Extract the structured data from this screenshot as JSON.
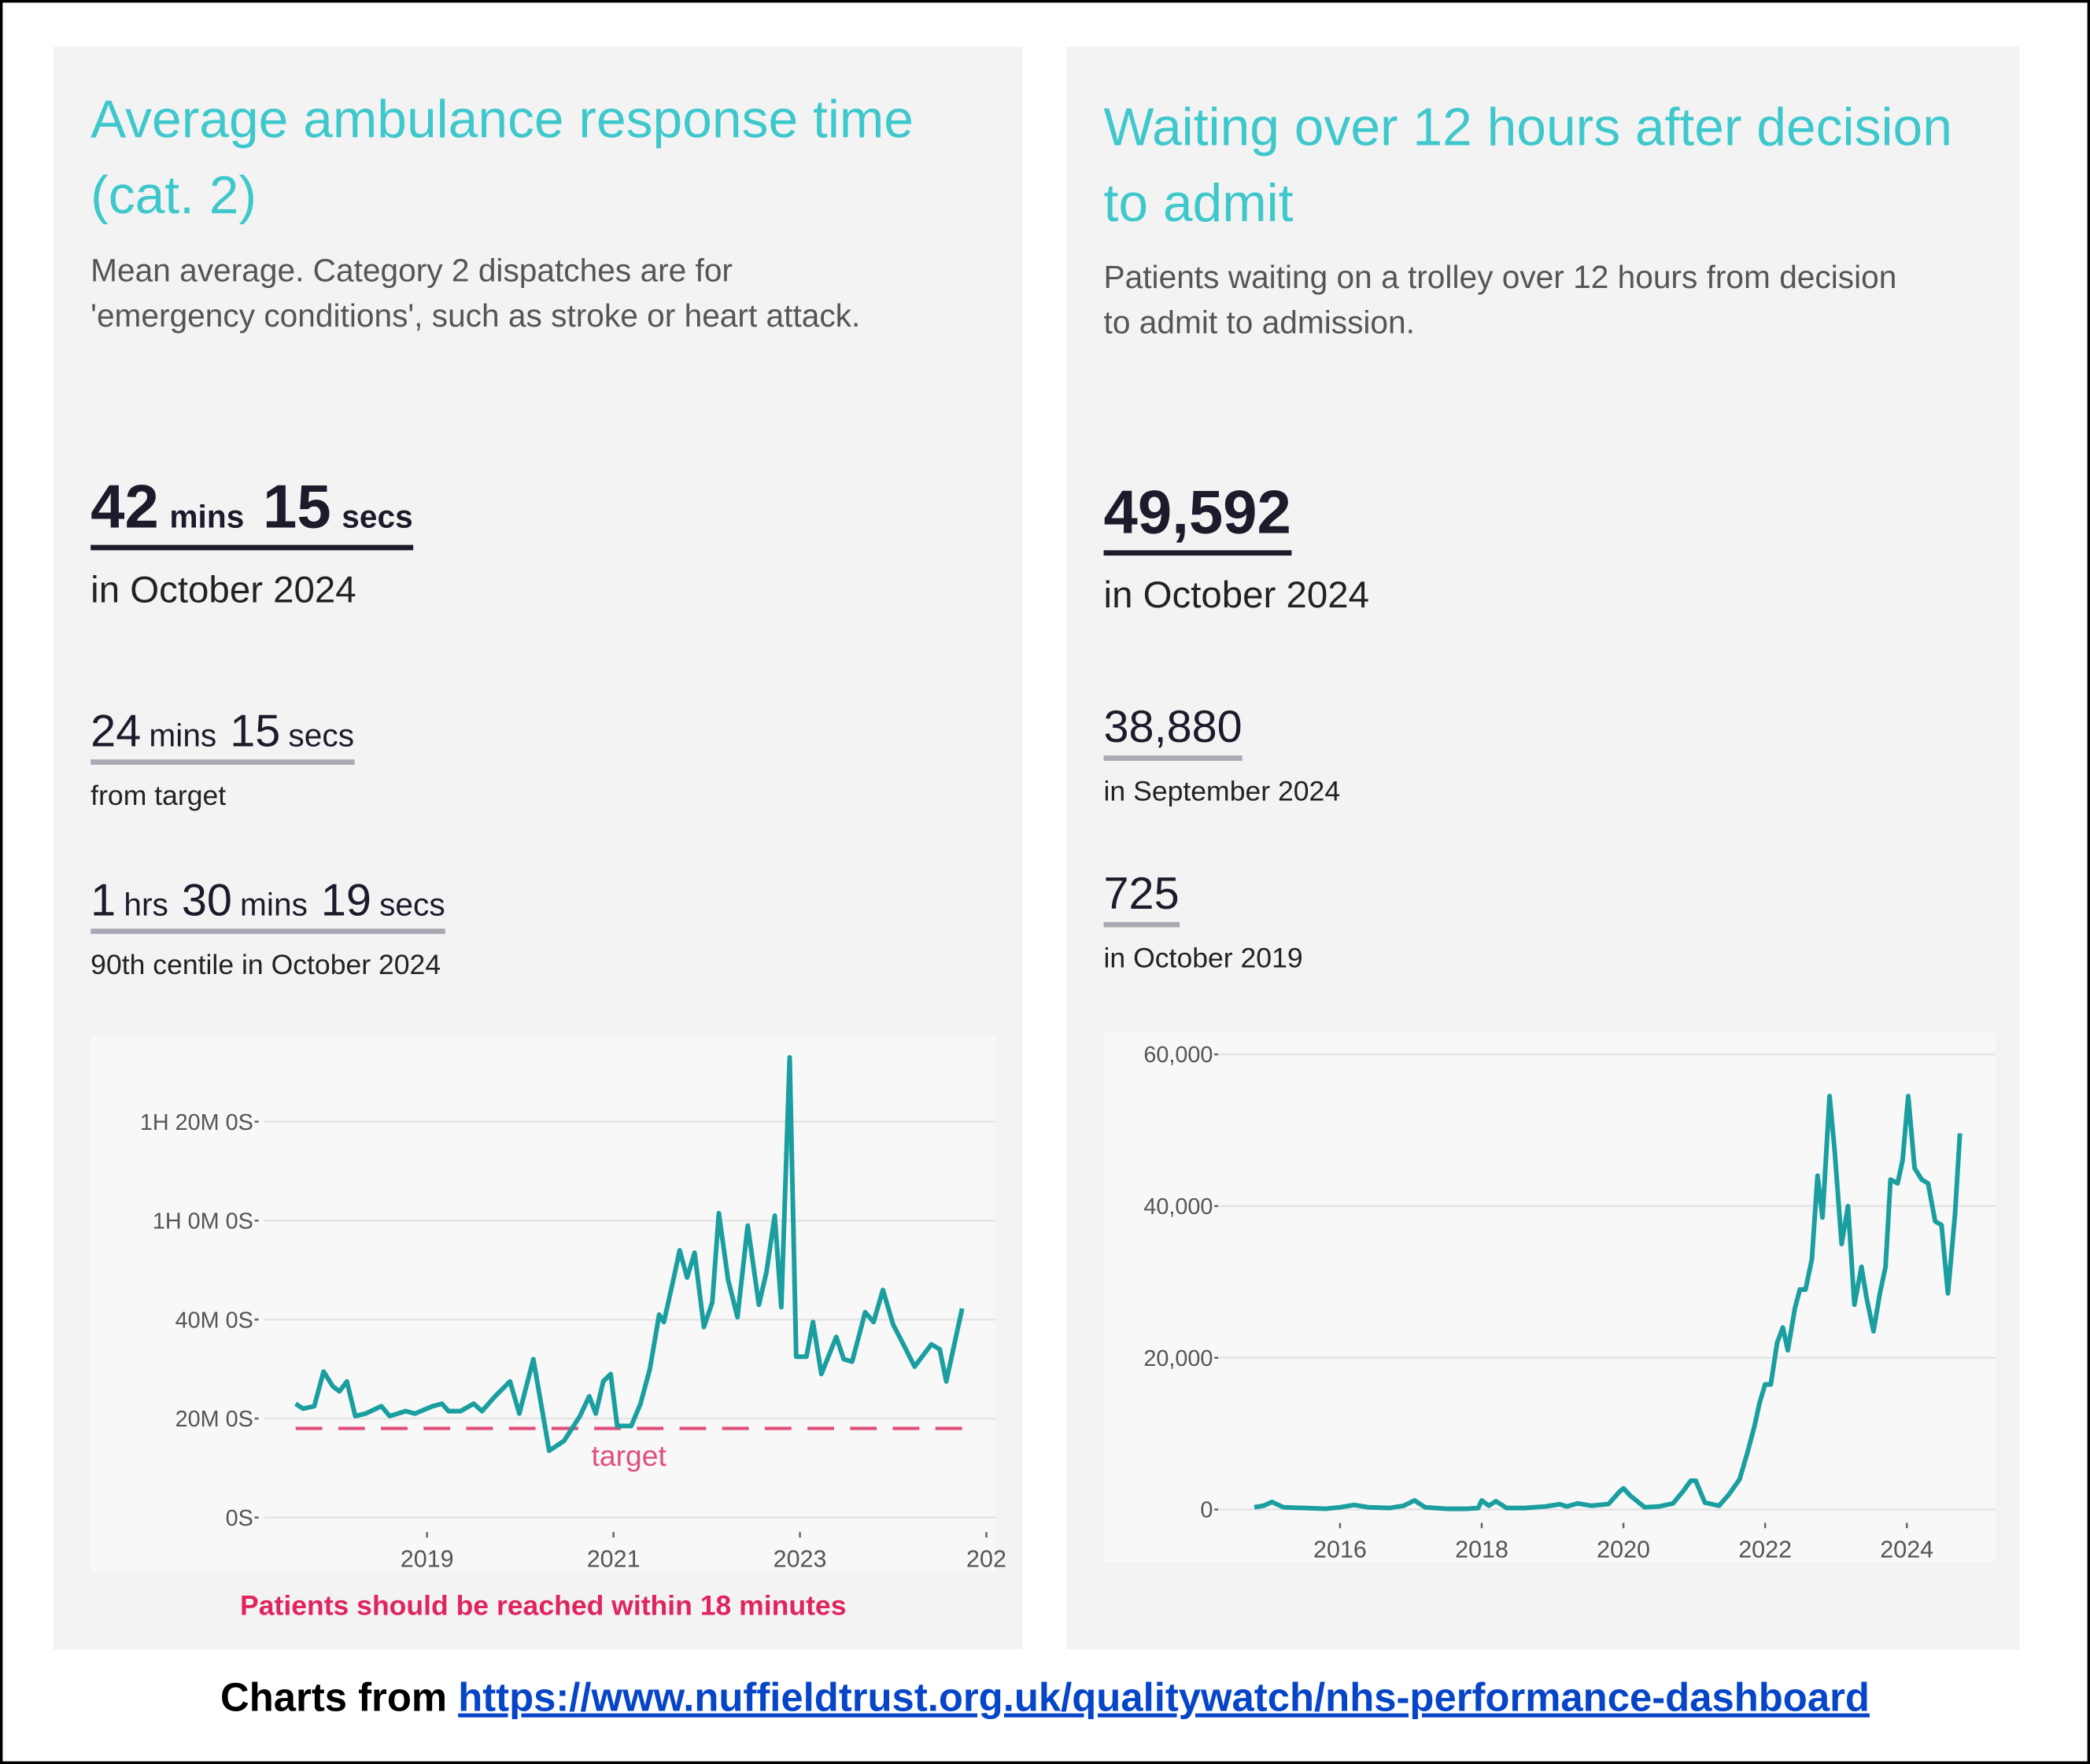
{
  "chart_data": [
    {
      "type": "line",
      "title": "Average ambulance response time (cat. 2)",
      "subtitle": "Mean average. Category 2 dispatches are for 'emergency conditions', such as stroke or heart attack.",
      "headline": {
        "parts": [
          {
            "number": 42,
            "unit": "mins"
          },
          {
            "number": 15,
            "unit": "secs"
          }
        ],
        "caption": "in October 2024"
      },
      "stats": [
        {
          "parts": [
            {
              "number": 24,
              "unit": "mins"
            },
            {
              "number": 15,
              "unit": "secs"
            }
          ],
          "caption": "from target"
        },
        {
          "parts": [
            {
              "number": 1,
              "unit": "hrs"
            },
            {
              "number": 30,
              "unit": "mins"
            },
            {
              "number": 19,
              "unit": "secs"
            }
          ],
          "caption": "90th centile in October 2024"
        }
      ],
      "x": [
        2017.59,
        2017.67,
        2017.79,
        2017.89,
        2017.99,
        2018.06,
        2018.14,
        2018.23,
        2018.34,
        2018.51,
        2018.6,
        2018.77,
        2018.87,
        2019.06,
        2019.16,
        2019.23,
        2019.36,
        2019.5,
        2019.59,
        2019.73,
        2019.89,
        2019.99,
        2020.14,
        2020.31,
        2020.47,
        2020.64,
        2020.74,
        2020.81,
        2020.89,
        2020.97,
        2021.04,
        2021.19,
        2021.29,
        2021.39,
        2021.49,
        2021.54,
        2021.63,
        2021.71,
        2021.79,
        2021.87,
        2021.97,
        2022.06,
        2022.13,
        2022.23,
        2022.33,
        2022.44,
        2022.56,
        2022.64,
        2022.73,
        2022.8,
        2022.89,
        2022.96,
        2023.07,
        2023.14,
        2023.23,
        2023.39,
        2023.47,
        2023.56,
        2023.7,
        2023.79,
        2023.89,
        2024.0,
        2024.11,
        2024.23,
        2024.41,
        2024.5,
        2024.57,
        2024.74
      ],
      "values": [
        1380,
        1320,
        1350,
        1770,
        1590,
        1530,
        1650,
        1230,
        1260,
        1350,
        1230,
        1290,
        1260,
        1350,
        1380,
        1290,
        1290,
        1380,
        1290,
        1470,
        1650,
        1260,
        1920,
        810,
        930,
        1230,
        1470,
        1260,
        1650,
        1740,
        1110,
        1110,
        1380,
        1800,
        2460,
        2370,
        2820,
        3240,
        2910,
        3210,
        2310,
        2610,
        3690,
        2880,
        2430,
        3540,
        2580,
        2970,
        3660,
        2550,
        5580,
        1950,
        1950,
        2370,
        1740,
        2190,
        1920,
        1890,
        2490,
        2370,
        2760,
        2340,
        2100,
        1830,
        2100,
        2040,
        1650,
        2535
      ],
      "color": "#1a9ea0",
      "xlim": [
        2017.25,
        2025.1
      ],
      "xticks": [
        2019,
        2021,
        2023,
        {
          "value": 2025,
          "label": "202"
        }
      ],
      "ylim": [
        0,
        5800
      ],
      "yticks": [
        {
          "value": 0,
          "label": "0S"
        },
        {
          "value": 1200,
          "label": "20M 0S"
        },
        {
          "value": 2400,
          "label": "40M 0S"
        },
        {
          "value": 3600,
          "label": "1H 0M 0S"
        },
        {
          "value": 4800,
          "label": "1H 20M 0S"
        }
      ],
      "grid": true,
      "target": {
        "value": 1080,
        "label": "target",
        "color": "#e0507a"
      },
      "annotation": "Patients should be reached within 18 minutes"
    },
    {
      "type": "line",
      "title": "Waiting over 12 hours after decision to admit",
      "subtitle": "Patients waiting on a trolley over 12 hours from decision to admit to admission.",
      "headline": {
        "parts": [
          {
            "number": "49,592"
          }
        ],
        "caption": "in October 2024"
      },
      "stats": [
        {
          "parts": [
            {
              "number": "38,880"
            }
          ],
          "caption": "in September 2024"
        },
        {
          "parts": [
            {
              "number": 725
            }
          ],
          "caption": "in October 2019"
        }
      ],
      "x": [
        2014.79,
        2014.92,
        2015.04,
        2015.2,
        2015.5,
        2015.8,
        2016.0,
        2016.2,
        2016.4,
        2016.7,
        2016.9,
        2017.05,
        2017.2,
        2017.5,
        2017.8,
        2017.95,
        2018.0,
        2018.1,
        2018.2,
        2018.35,
        2018.6,
        2018.9,
        2019.1,
        2019.2,
        2019.35,
        2019.55,
        2019.79,
        2019.94,
        2020.0,
        2020.1,
        2020.3,
        2020.5,
        2020.7,
        2020.85,
        2020.95,
        2021.02,
        2021.15,
        2021.35,
        2021.49,
        2021.64,
        2021.75,
        2021.85,
        2021.92,
        2022.0,
        2022.08,
        2022.17,
        2022.25,
        2022.32,
        2022.42,
        2022.49,
        2022.57,
        2022.66,
        2022.74,
        2022.81,
        2022.91,
        2022.98,
        2023.08,
        2023.17,
        2023.26,
        2023.36,
        2023.43,
        2023.53,
        2023.62,
        2023.7,
        2023.77,
        2023.87,
        2023.94,
        2024.02,
        2024.11,
        2024.21,
        2024.3,
        2024.4,
        2024.49,
        2024.58,
        2024.68,
        2024.75
      ],
      "values": [
        300,
        500,
        1000,
        300,
        200,
        100,
        300,
        600,
        300,
        200,
        500,
        1200,
        300,
        100,
        100,
        200,
        1200,
        500,
        1100,
        200,
        200,
        400,
        700,
        400,
        800,
        500,
        725,
        2300,
        2800,
        1800,
        300,
        400,
        800,
        2500,
        3800,
        3800,
        900,
        500,
        2000,
        4000,
        7500,
        11000,
        14000,
        16500,
        16500,
        22000,
        24000,
        21000,
        26500,
        29000,
        29000,
        33000,
        44000,
        38500,
        54500,
        47500,
        35000,
        40000,
        27000,
        32000,
        28000,
        23500,
        28500,
        32000,
        43500,
        43000,
        46000,
        54500,
        45000,
        43500,
        43000,
        38000,
        37500,
        28500,
        38880,
        49592
      ],
      "color": "#1a9ea0",
      "xlim": [
        2014.3,
        2025.25
      ],
      "xticks": [
        2016,
        2018,
        2020,
        2022,
        2024
      ],
      "ylim": [
        0,
        62000
      ],
      "yticks": [
        0,
        {
          "value": 20000,
          "label": "20,000"
        },
        {
          "value": 40000,
          "label": "40,000"
        },
        {
          "value": 60000,
          "label": "60,000"
        }
      ],
      "grid": true
    }
  ],
  "footer": {
    "text": "Charts from",
    "link": "https://www.nuffieldtrust.org.uk/qualitywatch/nhs-performance-dashboard"
  }
}
